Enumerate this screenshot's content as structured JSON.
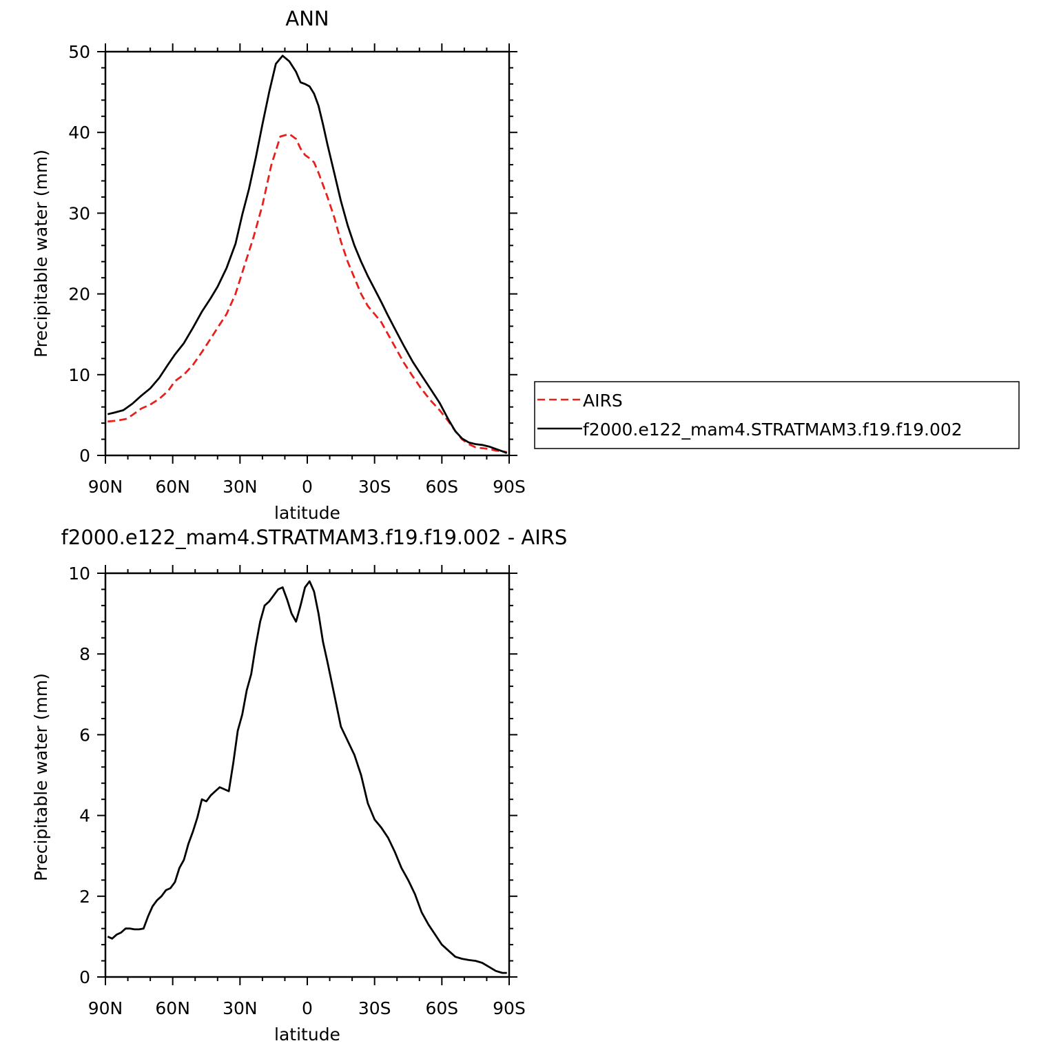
{
  "chart_data": [
    {
      "type": "line",
      "title": "ANN",
      "xlabel": "latitude",
      "ylabel": "Precipitable water (mm)",
      "xlim": [
        90,
        -90
      ],
      "ylim": [
        0,
        50
      ],
      "yticks": [
        0,
        10,
        20,
        30,
        40,
        50
      ],
      "xticks": [
        90,
        60,
        30,
        0,
        -30,
        -60,
        -90
      ],
      "xticklabels": [
        "90N",
        "60N",
        "30N",
        "0",
        "30S",
        "60S",
        "90S"
      ],
      "legend": [
        "AIRS",
        "f2000.e122_mam4.STRATMAM3.f19.f19.002"
      ],
      "series": [
        {
          "name": "AIRS",
          "color": "#e8201c",
          "style": "dashed",
          "x": [
            89,
            85,
            81,
            78,
            74,
            70,
            66,
            62,
            59,
            55,
            51,
            47,
            43,
            40,
            36,
            32,
            28,
            24,
            20,
            16,
            12,
            8,
            5,
            3,
            1,
            -1,
            -3,
            -5,
            -7,
            -9,
            -12,
            -15,
            -18,
            -21,
            -24,
            -27,
            -30,
            -33,
            -36,
            -39,
            -43,
            -47,
            -51,
            -55,
            -59,
            -63,
            -66,
            -69,
            -72,
            -75,
            -78,
            -81,
            -84,
            -87,
            -89
          ],
          "values": [
            4.2,
            4.3,
            4.5,
            5.0,
            5.8,
            6.3,
            7.0,
            8.0,
            9.2,
            10.0,
            11.2,
            12.8,
            14.5,
            15.8,
            17.5,
            20.0,
            23.5,
            27.0,
            31.0,
            36.0,
            39.5,
            39.8,
            39.2,
            38.0,
            37.2,
            36.8,
            36.3,
            35.0,
            33.5,
            32.0,
            29.5,
            26.5,
            24.0,
            22.0,
            20.0,
            18.5,
            17.5,
            16.5,
            15.0,
            13.5,
            11.5,
            9.8,
            8.2,
            6.8,
            5.6,
            4.2,
            3.0,
            2.0,
            1.4,
            1.0,
            0.9,
            0.8,
            0.6,
            0.5,
            0.4
          ]
        },
        {
          "name": "f2000.e122_mam4.STRATMAM3.f19.f19.002",
          "color": "#000000",
          "style": "solid",
          "x": [
            89,
            86,
            82,
            78,
            74,
            70,
            66,
            62,
            59,
            55,
            51,
            47,
            43,
            40,
            36,
            32,
            29,
            26,
            23,
            20,
            17,
            14,
            11,
            8,
            5,
            3,
            1,
            -1,
            -3,
            -5,
            -7,
            -9,
            -12,
            -15,
            -18,
            -21,
            -24,
            -27,
            -30,
            -33,
            -36,
            -39,
            -43,
            -47,
            -51,
            -55,
            -59,
            -63,
            -66,
            -69,
            -72,
            -75,
            -78,
            -81,
            -84,
            -87,
            -89
          ],
          "values": [
            5.1,
            5.3,
            5.6,
            6.4,
            7.4,
            8.3,
            9.6,
            11.3,
            12.5,
            13.9,
            15.8,
            17.8,
            19.5,
            20.9,
            23.2,
            26.2,
            29.8,
            33.0,
            36.8,
            41.0,
            45.0,
            48.5,
            49.5,
            48.8,
            47.5,
            46.2,
            46.0,
            45.7,
            44.8,
            43.3,
            41.0,
            38.5,
            35.0,
            31.5,
            28.5,
            26.0,
            24.0,
            22.2,
            20.6,
            19.0,
            17.3,
            15.7,
            13.6,
            11.6,
            9.9,
            8.2,
            6.5,
            4.4,
            3.0,
            2.1,
            1.6,
            1.4,
            1.3,
            1.1,
            0.8,
            0.5,
            0.3
          ]
        }
      ]
    },
    {
      "type": "line",
      "title": "f2000.e122_mam4.STRATMAM3.f19.f19.002 - AIRS",
      "xlabel": "latitude",
      "ylabel": "Precipitable water (mm)",
      "xlim": [
        90,
        -90
      ],
      "ylim": [
        0,
        10
      ],
      "yticks": [
        0,
        2,
        4,
        6,
        8,
        10
      ],
      "xticks": [
        90,
        60,
        30,
        0,
        -30,
        -60,
        -90
      ],
      "xticklabels": [
        "90N",
        "60N",
        "30N",
        "0",
        "30S",
        "60S",
        "90S"
      ],
      "series": [
        {
          "name": "f2000.e122_mam4.STRATMAM3.f19.f19.002 - AIRS",
          "color": "#000000",
          "style": "solid",
          "x": [
            89,
            87,
            85,
            83,
            81,
            79,
            77,
            75,
            73,
            71,
            69,
            67,
            65,
            63,
            61,
            59,
            57,
            55,
            53,
            51,
            49,
            47,
            45,
            43,
            41,
            39,
            37,
            35,
            33,
            31,
            29,
            27,
            25,
            23,
            21,
            19,
            17,
            15,
            13,
            11,
            9,
            7,
            5,
            3,
            1,
            -1,
            -3,
            -5,
            -7,
            -9,
            -12,
            -15,
            -18,
            -21,
            -24,
            -27,
            -30,
            -33,
            -36,
            -39,
            -42,
            -45,
            -48,
            -51,
            -54,
            -57,
            -60,
            -63,
            -66,
            -69,
            -72,
            -75,
            -78,
            -81,
            -84,
            -87,
            -89
          ],
          "values": [
            1.0,
            0.95,
            1.05,
            1.1,
            1.2,
            1.2,
            1.18,
            1.18,
            1.2,
            1.5,
            1.75,
            1.9,
            2.0,
            2.15,
            2.2,
            2.35,
            2.7,
            2.9,
            3.3,
            3.6,
            3.95,
            4.4,
            4.35,
            4.5,
            4.6,
            4.7,
            4.65,
            4.6,
            5.3,
            6.1,
            6.5,
            7.1,
            7.5,
            8.2,
            8.8,
            9.2,
            9.3,
            9.45,
            9.6,
            9.65,
            9.35,
            9.0,
            8.8,
            9.2,
            9.65,
            9.8,
            9.55,
            9.0,
            8.3,
            7.8,
            7.0,
            6.2,
            5.85,
            5.5,
            5.0,
            4.3,
            3.9,
            3.7,
            3.45,
            3.1,
            2.7,
            2.4,
            2.05,
            1.6,
            1.3,
            1.05,
            0.8,
            0.65,
            0.5,
            0.45,
            0.42,
            0.4,
            0.35,
            0.25,
            0.15,
            0.1,
            0.1
          ]
        }
      ]
    }
  ]
}
